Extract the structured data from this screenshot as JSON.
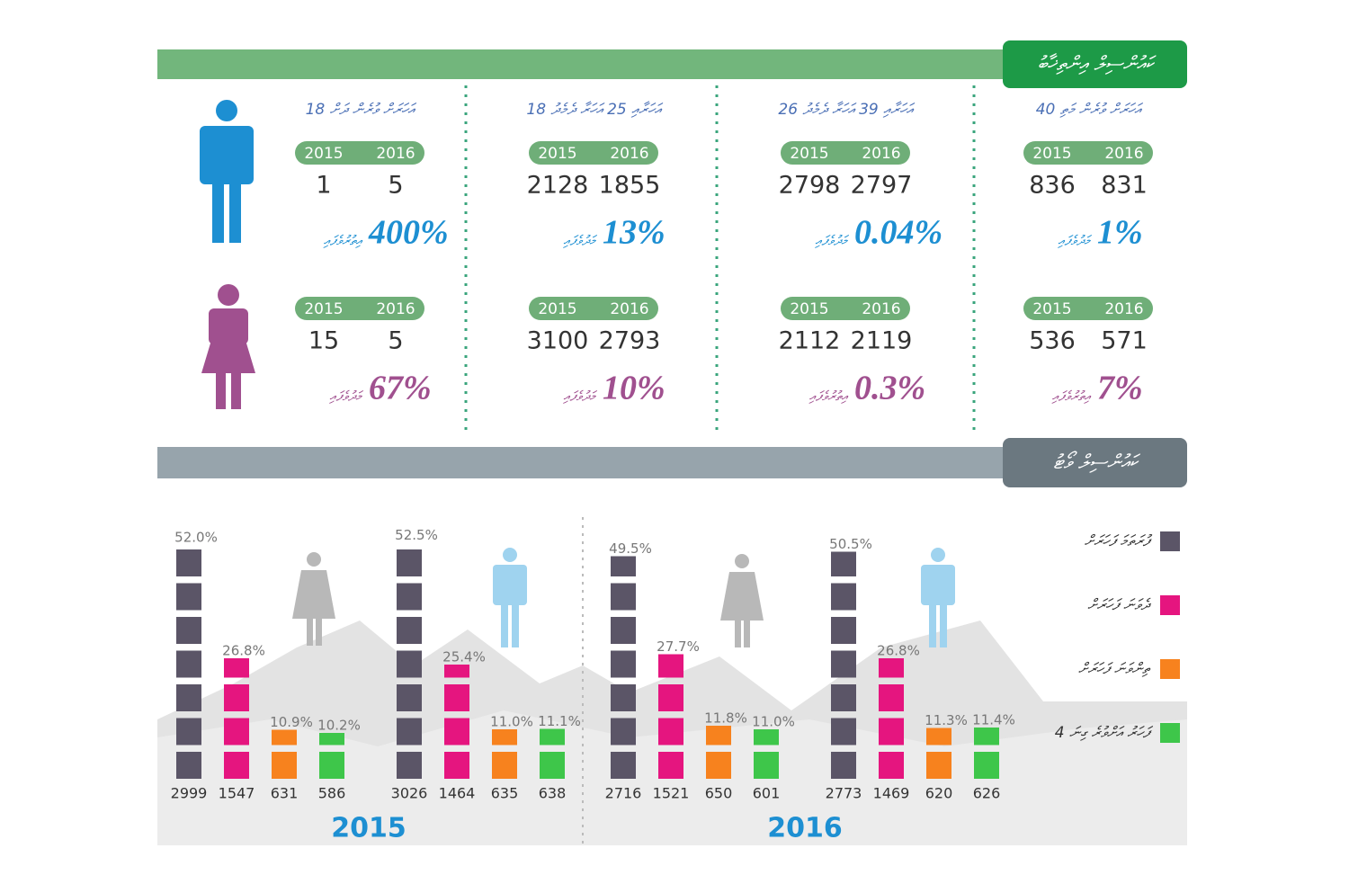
{
  "top": {
    "title": "ކައުންސިލް އިންތިޚާބު",
    "years": [
      "2015",
      "2016"
    ],
    "columns": [
      {
        "label": "18 އަހަރަށް ވުރެން ދަށް",
        "male": {
          "values": [
            1,
            5
          ],
          "change": "400%",
          "direction": "އިތުރުވެފައި"
        },
        "female": {
          "values": [
            15,
            5
          ],
          "change": "67%",
          "direction": "މަދުވެފައި"
        }
      },
      {
        "label": "18 އަހަރާއި 25 އަހަރާ ދެމެދު",
        "male": {
          "values": [
            2128,
            1855
          ],
          "change": "13%",
          "direction": "މަދުވެފައި"
        },
        "female": {
          "values": [
            3100,
            2793
          ],
          "change": "10%",
          "direction": "މަދުވެފައި"
        }
      },
      {
        "label": "26 އަހަރާއި 39 އަހަރާ ދެމެދު",
        "male": {
          "values": [
            2798,
            2797
          ],
          "change": "0.04%",
          "direction": "މަދުވެފައި"
        },
        "female": {
          "values": [
            2112,
            2119
          ],
          "change": "0.3%",
          "direction": "އިތުރުވެފައި"
        }
      },
      {
        "label": "40 އަހަރަށް ވުރެން މަތި",
        "male": {
          "values": [
            836,
            831
          ],
          "change": "1%",
          "direction": "މަދުވެފައި"
        },
        "female": {
          "values": [
            536,
            571
          ],
          "change": "7%",
          "direction": "އިތުރުވެފައި"
        }
      }
    ]
  },
  "vote_section": {
    "title": "ކައުންސިލް ވޯޓު",
    "legend": [
      {
        "name": "ފުރަތަމަ ފަހަރަށް",
        "color": "#5b5567"
      },
      {
        "name": "ދެވަނަ ފަހަރަށް",
        "color": "#e5157f"
      },
      {
        "name": "ތިންވަނަ ފަހަރަށް",
        "color": "#f7821e"
      },
      {
        "name": "4 ފަހަރު އަށްވުރެ ގިނަ",
        "color": "#3ec64a"
      }
    ]
  },
  "chart_data": [
    {
      "type": "bar",
      "title": "2015",
      "series": [
        {
          "values": [
            52.0,
            52.5
          ],
          "value_labels": [
            "52.0%",
            "52.5%"
          ],
          "counts": [
            2999,
            3026
          ]
        },
        {
          "values": [
            26.8,
            25.4
          ],
          "value_labels": [
            "26.8%",
            "25.4%"
          ],
          "counts": [
            1547,
            1464
          ]
        },
        {
          "values": [
            10.9,
            11.0
          ],
          "value_labels": [
            "10.9%",
            "11.0%"
          ],
          "counts": [
            631,
            635
          ]
        },
        {
          "values": [
            10.2,
            11.1
          ],
          "value_labels": [
            "10.2%",
            "11.1%"
          ],
          "counts": [
            586,
            638
          ]
        }
      ]
    },
    {
      "type": "bar",
      "title": "2016",
      "series": [
        {
          "values": [
            49.5,
            50.5
          ],
          "value_labels": [
            "49.5%",
            "50.5%"
          ],
          "counts": [
            2716,
            2773
          ]
        },
        {
          "values": [
            27.7,
            26.8
          ],
          "value_labels": [
            "27.7%",
            "26.8%"
          ],
          "counts": [
            1521,
            1469
          ]
        },
        {
          "values": [
            11.8,
            11.3
          ],
          "value_labels": [
            "11.8%",
            "11.3%"
          ],
          "counts": [
            650,
            620
          ]
        },
        {
          "values": [
            11.0,
            11.4
          ],
          "value_labels": [
            "11.0%",
            "11.4%"
          ],
          "counts": [
            601,
            626
          ]
        }
      ]
    }
  ]
}
